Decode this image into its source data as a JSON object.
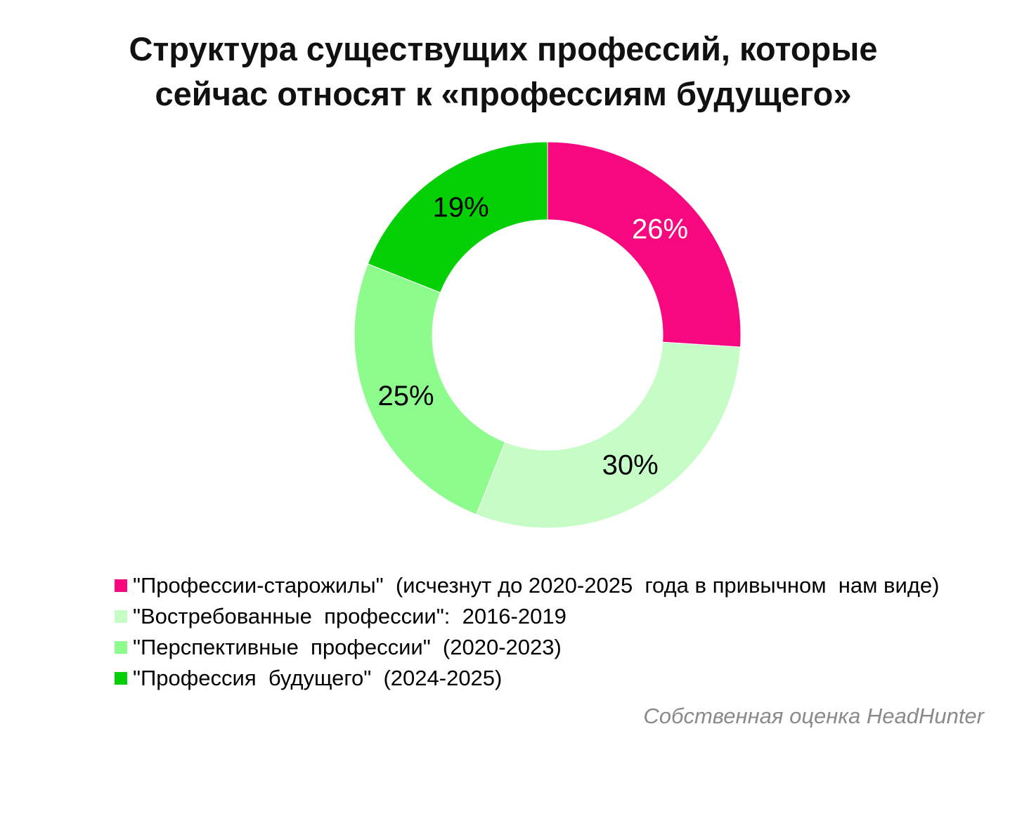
{
  "chart_data": {
    "type": "pie",
    "variant": "donut",
    "title": [
      "Структура существущих профессий, которые",
      "сейчас относят к «профессиям будущего»"
    ],
    "categories": [
      "\"Профессии-старожилы\"  (исчезнут до 2020-2025  года в привычном  нам виде)",
      "\"Востребованные  профессии\":  2016-2019",
      "\"Перспективные  профессии\"  (2020-2023)",
      "\"Профессия  будущего\"  (2024-2025)"
    ],
    "values": [
      26,
      30,
      25,
      19
    ],
    "labels": [
      "26%",
      "30%",
      "25%",
      "19%"
    ],
    "colors": [
      "#f7087f",
      "#c6fcc6",
      "#8dfc8d",
      "#05d005"
    ],
    "label_colors": [
      "#ffffff",
      "#000000",
      "#000000",
      "#000000"
    ],
    "legend_position": "bottom-left",
    "source": "Собственная оценка HeadHunter"
  }
}
